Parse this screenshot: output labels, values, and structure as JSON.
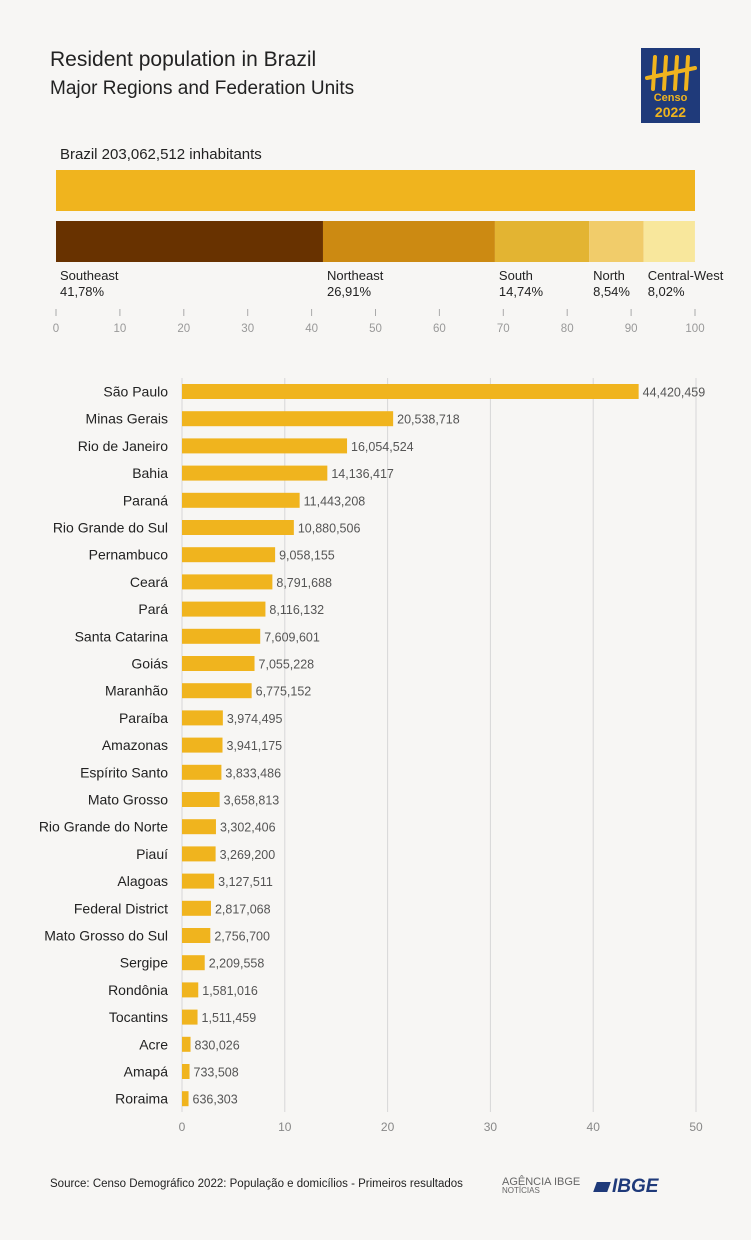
{
  "header": {
    "title": "Resident population in Brazil",
    "subtitle": "Major Regions and Federation Units",
    "logo_word": "Censo",
    "logo_year": "2022"
  },
  "total": {
    "label": "Brazil 203,062,512 inhabitants"
  },
  "footer": {
    "source": "Source: Censo Demográfico 2022: População e domicílios - Primeiros resultados",
    "agencia": "AGÊNCIA IBGE",
    "agencia_sub": "NOTÍCIAS",
    "ibge": "IBGE"
  },
  "colors": {
    "bar": "#f0b41e",
    "grid": "#d7d7d7",
    "axis": "#aaaaaa",
    "value_text": "#555555",
    "regions": [
      "#683200",
      "#cc8a12",
      "#e3b432",
      "#f1cc6a",
      "#f8e79c"
    ]
  },
  "chart_data": [
    {
      "type": "bar",
      "orientation": "horizontal-stacked",
      "total_bar": 100,
      "categories": [
        "Southeast",
        "Northeast",
        "South",
        "North",
        "Central-West"
      ],
      "values": [
        41.78,
        26.91,
        14.74,
        8.54,
        8.02
      ],
      "value_labels": [
        "41,78%",
        "26,91%",
        "14,74%",
        "8,54%",
        "8,02%"
      ],
      "xlim": [
        0,
        100
      ],
      "xticks": [
        0,
        10,
        20,
        30,
        40,
        50,
        60,
        70,
        80,
        90,
        100
      ],
      "grid": false
    },
    {
      "type": "bar",
      "orientation": "horizontal",
      "unit": "million",
      "categories": [
        "São Paulo",
        "Minas Gerais",
        "Rio de Janeiro",
        "Bahia",
        "Paraná",
        "Rio Grande do Sul",
        "Pernambuco",
        "Ceará",
        "Pará",
        "Santa Catarina",
        "Goiás",
        "Maranhão",
        "Paraíba",
        "Amazonas",
        "Espírito Santo",
        "Mato Grosso",
        "Rio Grande do Norte",
        "Piauí",
        "Alagoas",
        "Federal District",
        "Mato Grosso do Sul",
        "Sergipe",
        "Rondônia",
        "Tocantins",
        "Acre",
        "Amapá",
        "Roraima"
      ],
      "values": [
        44420459,
        20538718,
        16054524,
        14136417,
        11443208,
        10880506,
        9058155,
        8791688,
        8116132,
        7609601,
        7055228,
        6775152,
        3974495,
        3941175,
        3833486,
        3658813,
        3302406,
        3269200,
        3127511,
        2817068,
        2756700,
        2209558,
        1581016,
        1511459,
        830026,
        733508,
        636303
      ],
      "value_labels": [
        "44,420,459",
        "20,538,718",
        "16,054,524",
        "14,136,417",
        "11,443,208",
        "10,880,506",
        "9,058,155",
        "8,791,688",
        "8,116,132",
        "7,609,601",
        "7,055,228",
        "6,775,152",
        "3,974,495",
        "3,941,175",
        "3,833,486",
        "3,658,813",
        "3,302,406",
        "3,269,200",
        "3,127,511",
        "2,817,068",
        "2,756,700",
        "2,209,558",
        "1,581,016",
        "1,511,459",
        "830,026",
        "733,508",
        "636,303"
      ],
      "xlim": [
        0,
        50
      ],
      "xticks": [
        0,
        10,
        20,
        30,
        40,
        50
      ],
      "grid": true
    }
  ]
}
